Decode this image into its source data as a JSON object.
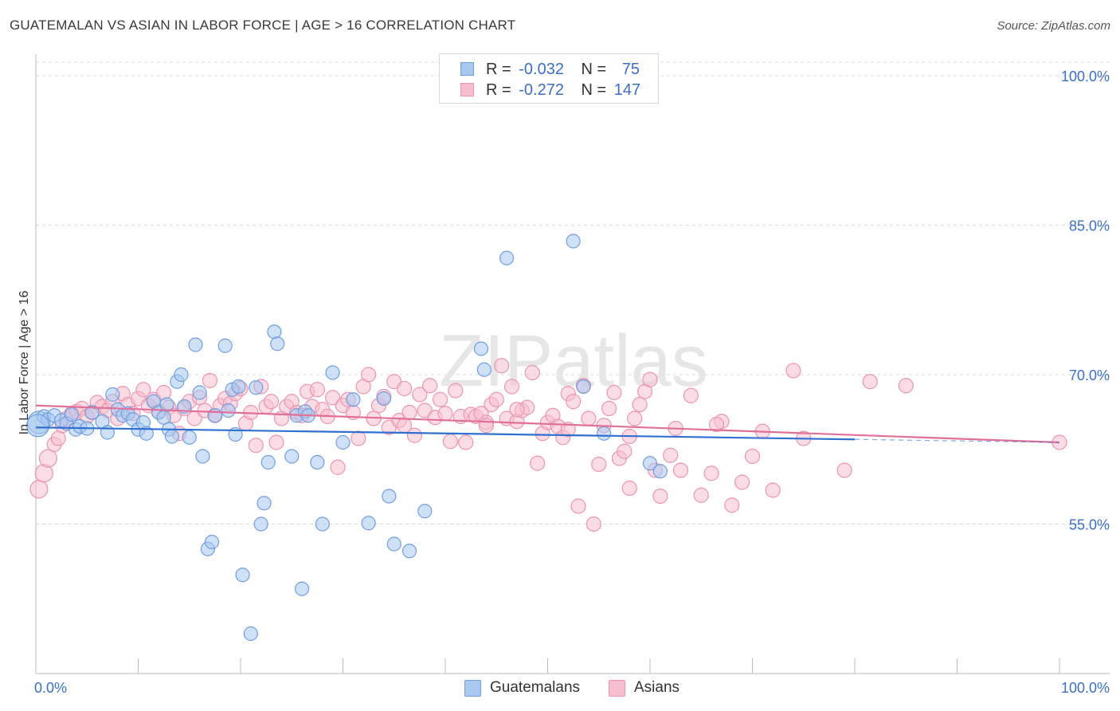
{
  "title": "GUATEMALAN VS ASIAN IN LABOR FORCE | AGE > 16 CORRELATION CHART",
  "source": "Source: ZipAtlas.com",
  "watermark": "ZIPatlas",
  "colors": {
    "blue_fill": "#a8c8f0",
    "blue_stroke": "#6f9ede",
    "blue_line": "#2f6fd0",
    "pink_fill": "#f6bfd0",
    "pink_stroke": "#ec93b0",
    "pink_line": "#e0709a",
    "axis_text": "#3b6fc7",
    "grid": "#d8d8d8"
  },
  "legend": {
    "series": [
      {
        "r_label": "R =",
        "r_value": "-0.032",
        "n_label": "N =",
        "n_value": "75"
      },
      {
        "r_label": "R =",
        "r_value": "-0.272",
        "n_label": "N =",
        "n_value": "147"
      }
    ],
    "bottom": [
      "Guatemalans",
      "Asians"
    ]
  },
  "chart_data": {
    "type": "scatter",
    "title": "GUATEMALAN VS ASIAN IN LABOR FORCE | AGE > 16 CORRELATION CHART",
    "xlabel": "",
    "ylabel": "In Labor Force | Age > 16",
    "xlim": [
      0,
      100
    ],
    "ylim": [
      40,
      102
    ],
    "x_tick_labels": [
      "0.0%",
      "100.0%"
    ],
    "y_ticks": [
      55,
      70,
      85,
      100
    ],
    "y_tick_labels": [
      "55.0%",
      "70.0%",
      "85.0%",
      "100.0%"
    ],
    "series": [
      {
        "name": "Guatemalans",
        "r": -0.032,
        "n": 75,
        "trend": {
          "x": [
            0,
            80
          ],
          "y": [
            64.7,
            63.5
          ],
          "dashed_to": [
            100,
            63.2
          ]
        },
        "points": [
          [
            0.3,
            65.2
          ],
          [
            0.8,
            65.8
          ],
          [
            1.2,
            65.5
          ],
          [
            1.8,
            65.9
          ],
          [
            2.5,
            65.4
          ],
          [
            3.0,
            65.1
          ],
          [
            3.5,
            66.0
          ],
          [
            3.9,
            64.5
          ],
          [
            4.3,
            64.8
          ],
          [
            5.0,
            64.6
          ],
          [
            5.5,
            66.2
          ],
          [
            6.5,
            65.3
          ],
          [
            7.0,
            64.2
          ],
          [
            7.5,
            68.0
          ],
          [
            8.0,
            66.5
          ],
          [
            8.5,
            65.9
          ],
          [
            9.0,
            66.1
          ],
          [
            9.5,
            65.5
          ],
          [
            10.0,
            64.5
          ],
          [
            10.5,
            65.2
          ],
          [
            10.8,
            64.1
          ],
          [
            11.5,
            67.3
          ],
          [
            12.0,
            66.2
          ],
          [
            12.5,
            65.7
          ],
          [
            12.8,
            67.0
          ],
          [
            13.0,
            64.5
          ],
          [
            13.3,
            63.8
          ],
          [
            13.8,
            69.3
          ],
          [
            14.2,
            70.0
          ],
          [
            14.5,
            66.8
          ],
          [
            15.0,
            63.7
          ],
          [
            15.6,
            73.0
          ],
          [
            16.0,
            68.2
          ],
          [
            16.3,
            61.8
          ],
          [
            16.8,
            52.5
          ],
          [
            17.2,
            53.2
          ],
          [
            17.5,
            65.9
          ],
          [
            18.5,
            72.9
          ],
          [
            18.8,
            66.4
          ],
          [
            19.2,
            68.5
          ],
          [
            19.5,
            64.0
          ],
          [
            19.8,
            68.8
          ],
          [
            20.2,
            49.9
          ],
          [
            21.0,
            44.0
          ],
          [
            21.5,
            68.7
          ],
          [
            22.0,
            55.0
          ],
          [
            22.3,
            57.1
          ],
          [
            22.7,
            61.2
          ],
          [
            23.3,
            74.3
          ],
          [
            23.6,
            73.1
          ],
          [
            25.0,
            61.8
          ],
          [
            25.5,
            65.9
          ],
          [
            26.0,
            48.5
          ],
          [
            26.3,
            66.3
          ],
          [
            26.6,
            65.9
          ],
          [
            27.5,
            61.2
          ],
          [
            28.0,
            55.0
          ],
          [
            29.0,
            70.2
          ],
          [
            30.0,
            63.2
          ],
          [
            31.0,
            67.5
          ],
          [
            32.5,
            55.1
          ],
          [
            34.0,
            67.6
          ],
          [
            34.5,
            57.8
          ],
          [
            35.0,
            53.0
          ],
          [
            36.5,
            52.3
          ],
          [
            38.0,
            56.3
          ],
          [
            43.5,
            72.6
          ],
          [
            43.8,
            70.5
          ],
          [
            46.0,
            81.7
          ],
          [
            52.5,
            83.4
          ],
          [
            53.5,
            68.8
          ],
          [
            55.5,
            64.1
          ],
          [
            60.0,
            61.1
          ],
          [
            61.0,
            60.3
          ],
          [
            0.2,
            64.9
          ]
        ]
      },
      {
        "name": "Asians",
        "r": -0.272,
        "n": 147,
        "trend": {
          "x": [
            0,
            100
          ],
          "y": [
            66.9,
            63.2
          ]
        },
        "points": [
          [
            0.3,
            58.5
          ],
          [
            0.8,
            60.1
          ],
          [
            1.2,
            61.6
          ],
          [
            1.8,
            63.0
          ],
          [
            2.2,
            63.6
          ],
          [
            2.6,
            64.9
          ],
          [
            3.0,
            65.6
          ],
          [
            3.5,
            66.1
          ],
          [
            4.0,
            66.3
          ],
          [
            4.5,
            66.6
          ],
          [
            5.0,
            65.8
          ],
          [
            5.5,
            66.2
          ],
          [
            6.0,
            67.2
          ],
          [
            6.5,
            66.8
          ],
          [
            7.0,
            66.4
          ],
          [
            7.5,
            67.3
          ],
          [
            8.0,
            65.6
          ],
          [
            8.5,
            68.1
          ],
          [
            9.0,
            67.0
          ],
          [
            9.5,
            66.1
          ],
          [
            10.0,
            67.6
          ],
          [
            10.5,
            68.5
          ],
          [
            11.0,
            66.9
          ],
          [
            11.5,
            67.5
          ],
          [
            12.0,
            66.3
          ],
          [
            12.5,
            68.2
          ],
          [
            13.0,
            66.7
          ],
          [
            13.5,
            65.9
          ],
          [
            14.0,
            64.1
          ],
          [
            14.5,
            66.6
          ],
          [
            15.0,
            67.3
          ],
          [
            15.5,
            65.6
          ],
          [
            16.0,
            67.7
          ],
          [
            16.5,
            66.4
          ],
          [
            17.0,
            69.4
          ],
          [
            17.5,
            65.9
          ],
          [
            18.0,
            66.9
          ],
          [
            18.5,
            67.6
          ],
          [
            19.0,
            67.1
          ],
          [
            19.5,
            68.1
          ],
          [
            20.0,
            68.6
          ],
          [
            20.5,
            65.1
          ],
          [
            21.0,
            66.2
          ],
          [
            21.5,
            62.9
          ],
          [
            22.0,
            68.8
          ],
          [
            22.5,
            66.8
          ],
          [
            23.0,
            67.3
          ],
          [
            23.5,
            63.2
          ],
          [
            24.0,
            65.6
          ],
          [
            24.5,
            66.8
          ],
          [
            25.0,
            67.3
          ],
          [
            25.5,
            66.2
          ],
          [
            26.0,
            65.9
          ],
          [
            26.5,
            68.3
          ],
          [
            27.0,
            66.8
          ],
          [
            27.5,
            68.5
          ],
          [
            28.0,
            66.5
          ],
          [
            28.5,
            65.8
          ],
          [
            29.0,
            67.7
          ],
          [
            29.5,
            60.7
          ],
          [
            30.0,
            66.9
          ],
          [
            30.5,
            67.5
          ],
          [
            31.0,
            66.2
          ],
          [
            31.5,
            63.6
          ],
          [
            32.0,
            68.8
          ],
          [
            32.5,
            70.0
          ],
          [
            33.0,
            65.6
          ],
          [
            33.5,
            66.9
          ],
          [
            34.0,
            67.8
          ],
          [
            34.5,
            64.7
          ],
          [
            35.0,
            69.3
          ],
          [
            35.5,
            65.4
          ],
          [
            36.0,
            64.9
          ],
          [
            36.5,
            66.2
          ],
          [
            37.0,
            63.9
          ],
          [
            37.5,
            68.0
          ],
          [
            38.0,
            66.4
          ],
          [
            38.5,
            68.9
          ],
          [
            39.0,
            65.7
          ],
          [
            39.5,
            67.5
          ],
          [
            40.0,
            66.1
          ],
          [
            40.5,
            63.3
          ],
          [
            41.0,
            68.4
          ],
          [
            41.5,
            65.8
          ],
          [
            42.0,
            63.2
          ],
          [
            42.5,
            66.0
          ],
          [
            43.0,
            65.8
          ],
          [
            43.5,
            66.1
          ],
          [
            44.0,
            65.2
          ],
          [
            44.5,
            67.0
          ],
          [
            45.0,
            67.5
          ],
          [
            45.5,
            70.9
          ],
          [
            46.0,
            65.6
          ],
          [
            46.5,
            68.8
          ],
          [
            47.0,
            65.3
          ],
          [
            47.5,
            66.4
          ],
          [
            48.0,
            66.7
          ],
          [
            48.5,
            70.2
          ],
          [
            49.0,
            61.1
          ],
          [
            49.5,
            64.1
          ],
          [
            50.0,
            65.2
          ],
          [
            50.5,
            65.9
          ],
          [
            51.0,
            64.8
          ],
          [
            51.5,
            63.7
          ],
          [
            52.0,
            68.1
          ],
          [
            52.5,
            67.3
          ],
          [
            53.0,
            56.8
          ],
          [
            53.5,
            68.9
          ],
          [
            54.0,
            65.6
          ],
          [
            54.5,
            55.0
          ],
          [
            55.0,
            61.0
          ],
          [
            55.5,
            64.9
          ],
          [
            56.0,
            66.6
          ],
          [
            56.5,
            68.2
          ],
          [
            57.0,
            61.6
          ],
          [
            57.5,
            62.3
          ],
          [
            58.0,
            58.6
          ],
          [
            58.5,
            65.6
          ],
          [
            59.0,
            67.0
          ],
          [
            59.5,
            68.3
          ],
          [
            60.0,
            69.5
          ],
          [
            60.5,
            60.4
          ],
          [
            61.0,
            57.8
          ],
          [
            62.0,
            61.9
          ],
          [
            63.0,
            60.4
          ],
          [
            64.0,
            67.9
          ],
          [
            65.0,
            57.9
          ],
          [
            66.0,
            60.1
          ],
          [
            67.0,
            65.3
          ],
          [
            68.0,
            56.9
          ],
          [
            69.0,
            59.2
          ],
          [
            70.0,
            61.8
          ],
          [
            71.0,
            64.3
          ],
          [
            72.0,
            58.4
          ],
          [
            74.0,
            70.4
          ],
          [
            75.0,
            63.6
          ],
          [
            79.0,
            60.4
          ],
          [
            81.5,
            69.3
          ],
          [
            85.0,
            68.9
          ],
          [
            100.0,
            63.2
          ],
          [
            47.0,
            66.5
          ],
          [
            44.0,
            64.9
          ],
          [
            52.0,
            64.5
          ],
          [
            58.0,
            63.8
          ],
          [
            62.5,
            64.6
          ],
          [
            66.5,
            65.0
          ],
          [
            36.0,
            68.6
          ]
        ]
      }
    ]
  }
}
